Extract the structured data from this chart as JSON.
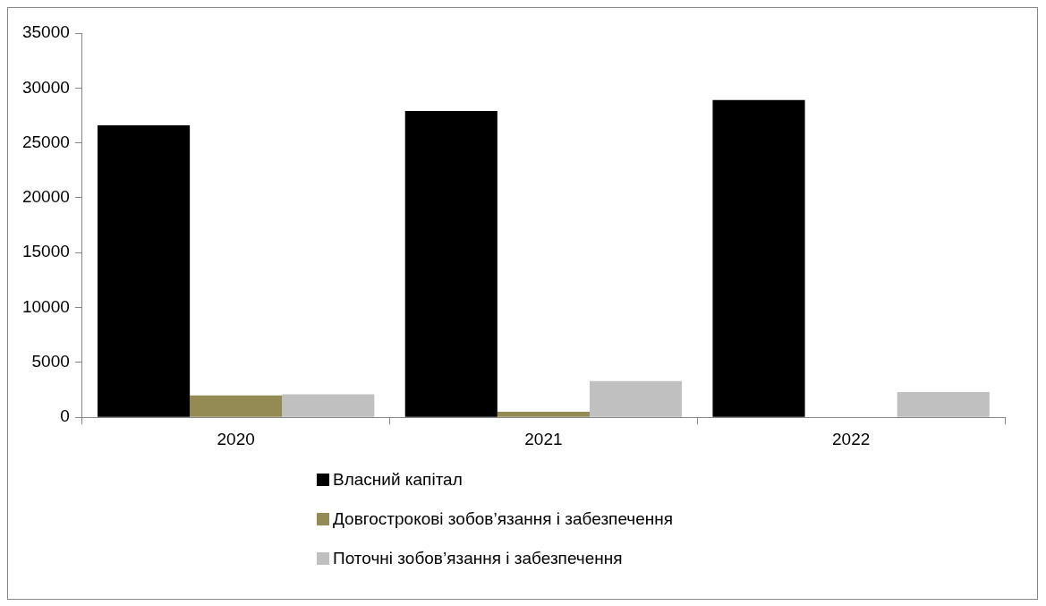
{
  "chart_data": {
    "type": "bar",
    "categories": [
      "2020",
      "2021",
      "2022"
    ],
    "series": [
      {
        "name": "Власний капітал",
        "color": "#000000",
        "values": [
          26600,
          27900,
          28900
        ]
      },
      {
        "name": "Довгострокові зобов’язання і забезпечення",
        "color": "#948a54",
        "values": [
          2000,
          500,
          0
        ]
      },
      {
        "name": "Поточні зобов’язання і забезпечення",
        "color": "#c0c0c0",
        "values": [
          2100,
          3300,
          2300
        ]
      }
    ],
    "ylim": [
      0,
      35000
    ],
    "yticks": [
      0,
      5000,
      10000,
      15000,
      20000,
      25000,
      30000,
      35000
    ],
    "grid": false,
    "legend": "bottom"
  }
}
